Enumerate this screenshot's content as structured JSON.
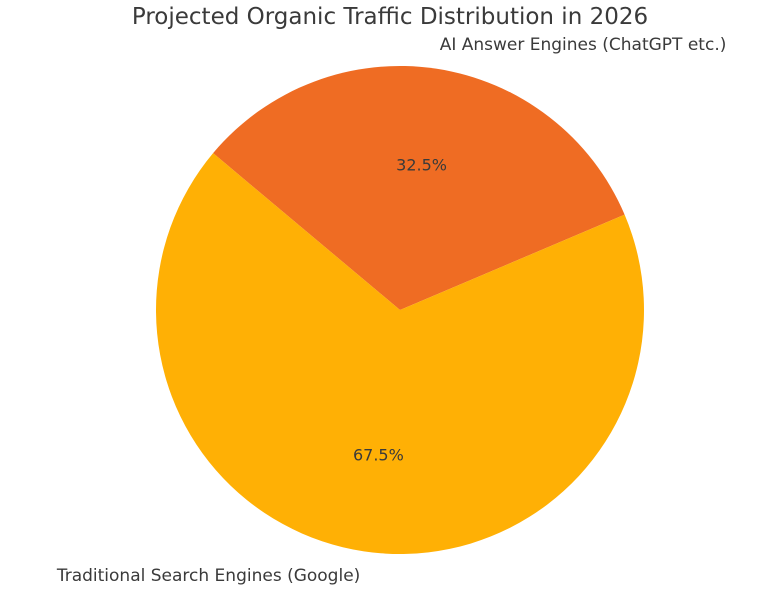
{
  "chart_data": {
    "type": "pie",
    "title": "Projected Organic Traffic Distribution in 2026",
    "labels": [
      "AI Answer Engines (ChatGPT etc.)",
      "Traditional Search Engines (Google)"
    ],
    "values": [
      32.5,
      67.5
    ],
    "value_labels": [
      "32.5%",
      "67.5%"
    ],
    "colors": [
      "#EF6C23",
      "#FFB005"
    ],
    "start_angle_deg": 23,
    "direction": "counterclockwise",
    "legend": "none",
    "grid": "off",
    "background_color": "#ffffff",
    "text_color": "#3a3a3a"
  }
}
